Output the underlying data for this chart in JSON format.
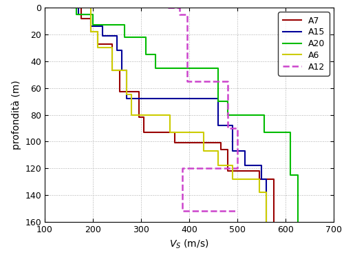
{
  "xlabel": "V_S (m/s)",
  "ylabel": "profondità (m)",
  "xlim": [
    100,
    700
  ],
  "ylim": [
    160,
    0
  ],
  "xticks": [
    100,
    200,
    300,
    400,
    500,
    600,
    700
  ],
  "yticks": [
    0,
    20,
    40,
    60,
    80,
    100,
    120,
    140,
    160
  ],
  "profiles": {
    "A7": {
      "color": "#990000",
      "linestyle": "-",
      "linewidth": 1.5,
      "vs": [
        160,
        175,
        175,
        195,
        195,
        210,
        210,
        240,
        240,
        255,
        255,
        295,
        295,
        305,
        305,
        370,
        370,
        465,
        465,
        480,
        480,
        545,
        545,
        575,
        575
      ],
      "depth": [
        0,
        0,
        8,
        8,
        18,
        18,
        27,
        27,
        47,
        47,
        63,
        63,
        82,
        82,
        93,
        93,
        101,
        101,
        106,
        106,
        122,
        122,
        128,
        128,
        160
      ]
    },
    "A15": {
      "color": "#000099",
      "linestyle": "-",
      "linewidth": 1.5,
      "vs": [
        155,
        170,
        170,
        195,
        195,
        220,
        220,
        250,
        250,
        260,
        260,
        270,
        270,
        460,
        460,
        490,
        490,
        515,
        515,
        550,
        550,
        560,
        560
      ],
      "depth": [
        0,
        0,
        5,
        5,
        14,
        14,
        21,
        21,
        32,
        32,
        47,
        47,
        68,
        68,
        88,
        88,
        107,
        107,
        118,
        118,
        128,
        128,
        160
      ]
    },
    "A20": {
      "color": "#00BB00",
      "linestyle": "-",
      "linewidth": 1.5,
      "vs": [
        155,
        165,
        165,
        200,
        200,
        265,
        265,
        310,
        310,
        330,
        330,
        460,
        460,
        480,
        480,
        555,
        555,
        610,
        610,
        625,
        625
      ],
      "depth": [
        0,
        0,
        5,
        5,
        13,
        13,
        22,
        22,
        35,
        35,
        45,
        45,
        70,
        70,
        80,
        80,
        93,
        93,
        125,
        125,
        160
      ]
    },
    "A6": {
      "color": "#CCCC00",
      "linestyle": "-",
      "linewidth": 1.5,
      "vs": [
        175,
        195,
        195,
        210,
        210,
        240,
        240,
        270,
        270,
        280,
        280,
        360,
        360,
        430,
        430,
        460,
        460,
        490,
        490,
        545,
        545,
        560,
        560
      ],
      "depth": [
        0,
        0,
        18,
        18,
        30,
        30,
        47,
        47,
        65,
        65,
        80,
        80,
        93,
        93,
        107,
        107,
        118,
        118,
        128,
        128,
        138,
        138,
        160
      ]
    },
    "A12": {
      "color": "#CC44CC",
      "linestyle": "--",
      "linewidth": 1.8,
      "vs": [
        355,
        380,
        380,
        395,
        395,
        395,
        395,
        480,
        480,
        500,
        500,
        385,
        385,
        500
      ],
      "depth": [
        0,
        0,
        5,
        5,
        13,
        13,
        55,
        55,
        90,
        90,
        120,
        120,
        152,
        152
      ]
    }
  },
  "legend_order": [
    "A7",
    "A15",
    "A20",
    "A6",
    "A12"
  ],
  "background_color": "#ffffff",
  "grid_color": "#888888",
  "grid_linestyle": ":",
  "fontsize": 10,
  "tick_fontsize": 9
}
